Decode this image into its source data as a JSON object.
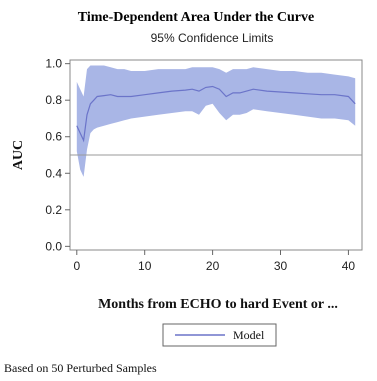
{
  "chart_data": {
    "type": "line",
    "title": "Time-Dependent Area Under the Curve",
    "subtitle": "95% Confidence Limits",
    "xlabel": "Months from ECHO to hard Event or ...",
    "ylabel": "AUC",
    "xlim": [
      -1,
      42
    ],
    "ylim": [
      -0.02,
      1.02
    ],
    "xticks": [
      0,
      10,
      20,
      30,
      40
    ],
    "xtick_labels": [
      "0",
      "10",
      "20",
      "30",
      "40"
    ],
    "yticks": [
      0.0,
      0.2,
      0.4,
      0.6,
      0.8,
      1.0
    ],
    "ytick_labels": [
      "0.0",
      "0.2",
      "0.4",
      "0.6",
      "0.8",
      "1.0"
    ],
    "reference_line_y": 0.5,
    "grid": false,
    "legend_position": "bottom-center",
    "series": [
      {
        "name": "Model",
        "color": "#6b74c9",
        "band_color": "#a9b6e6",
        "x": [
          0,
          0.5,
          1,
          1.5,
          2,
          2.5,
          3,
          4,
          5,
          6,
          7,
          8,
          10,
          12,
          14,
          16,
          17,
          18,
          19,
          20,
          21,
          22,
          23,
          24,
          25,
          26,
          28,
          30,
          32,
          34,
          36,
          38,
          40,
          41
        ],
        "y": [
          0.66,
          0.62,
          0.58,
          0.72,
          0.78,
          0.8,
          0.82,
          0.825,
          0.83,
          0.82,
          0.82,
          0.82,
          0.83,
          0.84,
          0.85,
          0.855,
          0.86,
          0.85,
          0.87,
          0.875,
          0.86,
          0.82,
          0.84,
          0.84,
          0.85,
          0.86,
          0.85,
          0.845,
          0.84,
          0.835,
          0.83,
          0.83,
          0.82,
          0.78
        ],
        "lower": [
          0.52,
          0.42,
          0.38,
          0.53,
          0.62,
          0.64,
          0.65,
          0.66,
          0.67,
          0.68,
          0.69,
          0.7,
          0.71,
          0.72,
          0.73,
          0.74,
          0.74,
          0.72,
          0.77,
          0.78,
          0.73,
          0.69,
          0.72,
          0.72,
          0.73,
          0.75,
          0.74,
          0.73,
          0.72,
          0.71,
          0.7,
          0.7,
          0.69,
          0.66
        ],
        "upper": [
          0.9,
          0.86,
          0.82,
          0.97,
          0.99,
          0.99,
          0.99,
          0.99,
          0.98,
          0.97,
          0.97,
          0.96,
          0.96,
          0.97,
          0.97,
          0.97,
          0.98,
          0.98,
          0.98,
          0.98,
          0.97,
          0.95,
          0.97,
          0.97,
          0.97,
          0.98,
          0.97,
          0.96,
          0.96,
          0.95,
          0.95,
          0.94,
          0.93,
          0.92
        ]
      }
    ]
  },
  "footnote": "Based on 50 Perturbed Samples"
}
